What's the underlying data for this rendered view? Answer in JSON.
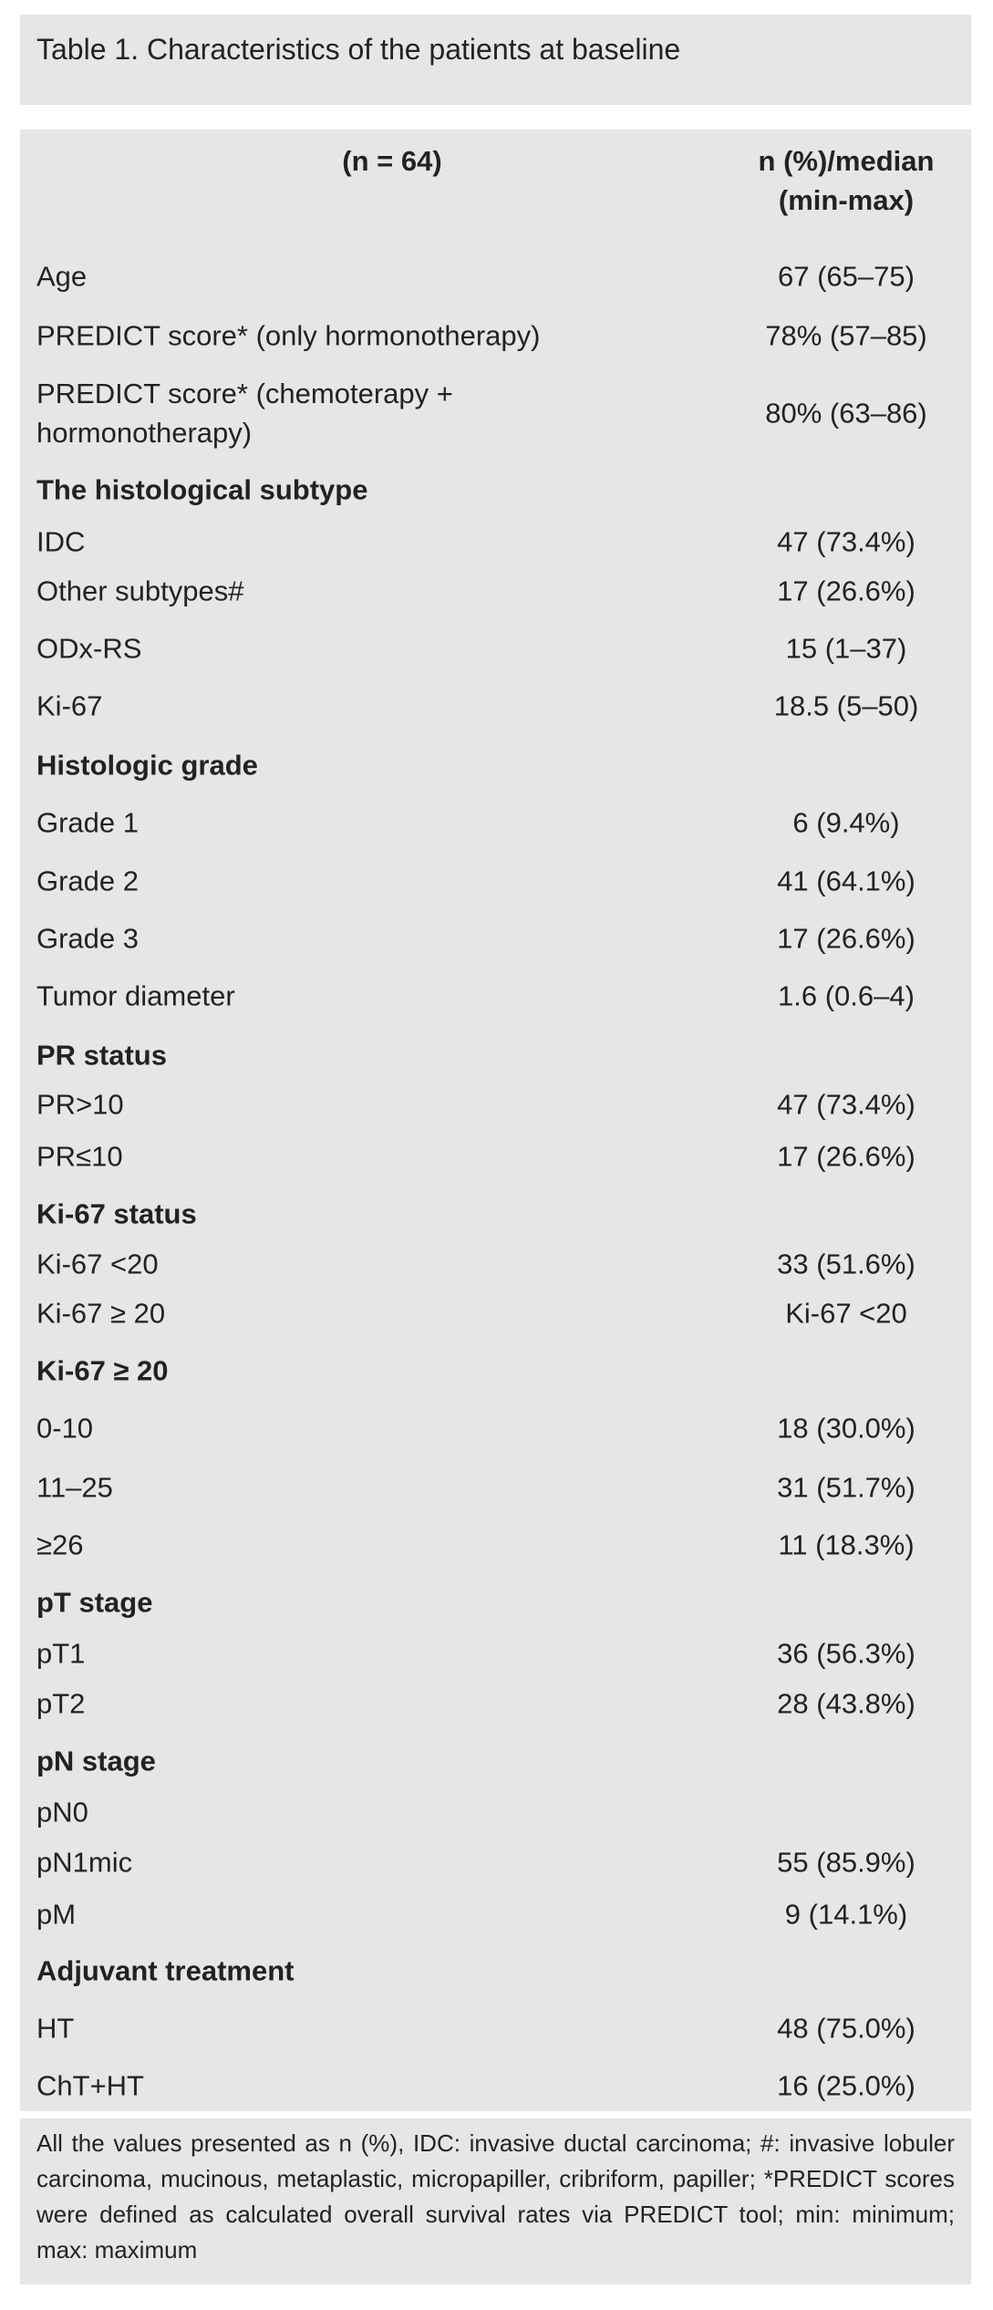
{
  "title": "Table 1. Characteristics of the patients at baseline",
  "header": {
    "col1": "(n = 64)",
    "col2_line1": "n (%)/median",
    "col2_line2": "(min-max)"
  },
  "rows": [
    {
      "label": "Age",
      "value": "67 (65–75)",
      "section": false
    },
    {
      "label": "PREDICT score* (only hormonotherapy)",
      "value": "78% (57–85)",
      "section": false
    },
    {
      "label": "PREDICT score* (chemoterapy + hormonotherapy)",
      "value": "80% (63–86)",
      "section": false
    },
    {
      "label": "The histological subtype",
      "value": "",
      "section": true
    },
    {
      "label": "IDC",
      "value": "47 (73.4%)",
      "section": false
    },
    {
      "label": "Other subtypes#",
      "value": "17 (26.6%)",
      "section": false
    },
    {
      "label": "ODx-RS",
      "value": "15 (1–37)",
      "section": false
    },
    {
      "label": "Ki-67",
      "value": "18.5 (5–50)",
      "section": false
    },
    {
      "label": "Histologic grade",
      "value": "",
      "section": true
    },
    {
      "label": "Grade 1",
      "value": "6 (9.4%)",
      "section": false
    },
    {
      "label": "Grade 2",
      "value": "41 (64.1%)",
      "section": false
    },
    {
      "label": "Grade 3",
      "value": "17 (26.6%)",
      "section": false
    },
    {
      "label": "Tumor diameter",
      "value": "1.6 (0.6–4)",
      "section": false
    },
    {
      "label": "PR status",
      "value": "",
      "section": true
    },
    {
      "label": "PR>10",
      "value": "47 (73.4%)",
      "section": false
    },
    {
      "label": "PR≤10",
      "value": "17 (26.6%)",
      "section": false
    },
    {
      "label": "Ki-67 status",
      "value": "",
      "section": true
    },
    {
      "label": "Ki-67 <20",
      "value": "33 (51.6%)",
      "section": false
    },
    {
      "label": "Ki-67 ≥ 20",
      "value": "Ki-67 <20",
      "section": false
    },
    {
      "label": "Ki-67 ≥ 20",
      "value": "",
      "section": true
    },
    {
      "label": "0-10",
      "value": "18 (30.0%)",
      "section": false
    },
    {
      "label": "11–25",
      "value": "31 (51.7%)",
      "section": false
    },
    {
      "label": "≥26",
      "value": "11 (18.3%)",
      "section": false
    },
    {
      "label": "pT stage",
      "value": "",
      "section": true
    },
    {
      "label": "pT1",
      "value": "36 (56.3%)",
      "section": false
    },
    {
      "label": "pT2",
      "value": "28 (43.8%)",
      "section": false
    },
    {
      "label": "pN stage",
      "value": "",
      "section": true
    },
    {
      "label": "pN0",
      "value": "",
      "section": false
    },
    {
      "label": "pN1mic",
      "value": "55 (85.9%)",
      "section": false
    },
    {
      "label": "pM",
      "value": "9 (14.1%)",
      "section": false
    },
    {
      "label": "Adjuvant treatment",
      "value": "",
      "section": true
    },
    {
      "label": "HT",
      "value": "48 (75.0%)",
      "section": false
    },
    {
      "label": "ChT+HT",
      "value": "16 (25.0%)",
      "section": false
    }
  ],
  "footer": "All the values presented as n (%), IDC: invasive ductal carcinoma; #: invasive lobuler carcinoma, mucinous, metaplastic, micropapiller, cribriform, papiller; *PREDICT scores were defined as calculated overall survival rates via PREDICT tool; min: minimum; max: maximum"
}
